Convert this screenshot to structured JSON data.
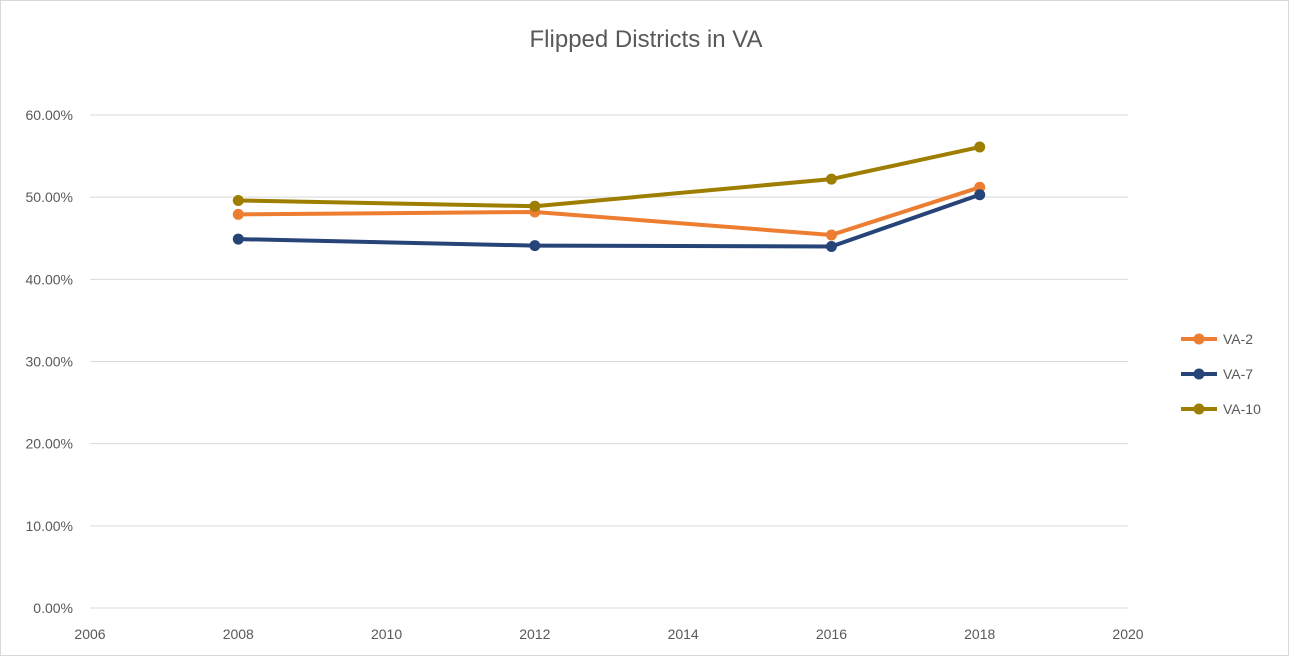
{
  "chart_data": {
    "type": "line",
    "title": "Flipped Districts in VA",
    "xlabel": "",
    "ylabel": "",
    "xlim": [
      2006,
      2020
    ],
    "ylim": [
      0,
      0.6
    ],
    "x_ticks": [
      2006,
      2008,
      2010,
      2012,
      2014,
      2016,
      2018,
      2020
    ],
    "x_tick_labels": [
      "2006",
      "2008",
      "2010",
      "2012",
      "2014",
      "2016",
      "2018",
      "2020"
    ],
    "y_ticks": [
      0,
      0.1,
      0.2,
      0.3,
      0.4,
      0.5,
      0.6
    ],
    "y_tick_labels": [
      "0.00%",
      "10.00%",
      "20.00%",
      "30.00%",
      "40.00%",
      "50.00%",
      "60.00%"
    ],
    "grid": "horizontal",
    "legend_position": "right",
    "x": [
      2008,
      2012,
      2016,
      2018
    ],
    "series": [
      {
        "name": "VA-2",
        "color": "#ED7D31",
        "values": [
          0.479,
          0.482,
          0.454,
          0.512
        ]
      },
      {
        "name": "VA-7",
        "color": "#264478",
        "values": [
          0.449,
          0.441,
          0.44,
          0.503
        ]
      },
      {
        "name": "VA-10",
        "color": "#9E7E00",
        "values": [
          0.496,
          0.489,
          0.522,
          0.561
        ]
      }
    ]
  }
}
